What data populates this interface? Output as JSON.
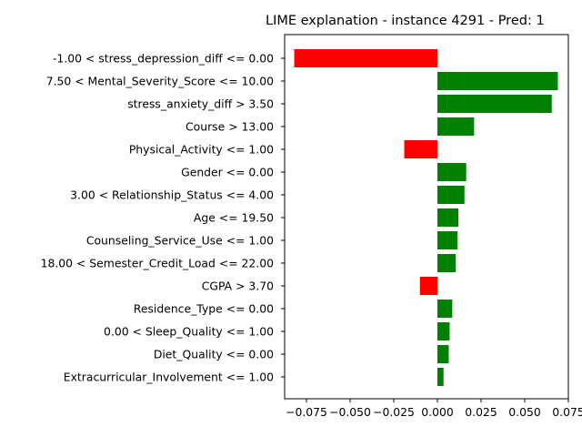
{
  "chart_data": {
    "type": "bar",
    "orientation": "horizontal",
    "title": "LIME explanation - instance 4291 - Pred: 1",
    "xlabel": "",
    "ylabel": "",
    "xlim": [
      -0.0875,
      0.075
    ],
    "xticks": [
      -0.075,
      -0.05,
      -0.025,
      0.0,
      0.025,
      0.05,
      0.075
    ],
    "xtick_labels": [
      "−0.075",
      "−0.050",
      "−0.025",
      "0.000",
      "0.025",
      "0.050",
      "0.075"
    ],
    "grid": false,
    "legend": "none",
    "colors": {
      "positive": "#008000",
      "negative": "#ff0000"
    },
    "categories": [
      "-1.00 < stress_depression_diff <= 0.00",
      "7.50 < Mental_Severity_Score <= 10.00",
      "stress_anxiety_diff > 3.50",
      "Course > 13.00",
      "Physical_Activity <= 1.00",
      "Gender <= 0.00",
      "3.00 < Relationship_Status <= 4.00",
      "Age <= 19.50",
      "Counseling_Service_Use <= 1.00",
      "18.00 < Semester_Credit_Load <= 22.00",
      "CGPA > 3.70",
      "Residence_Type <= 0.00",
      "0.00 < Sleep_Quality <= 1.00",
      "Diet_Quality <= 0.00",
      "Extracurricular_Involvement <= 1.00"
    ],
    "values": [
      -0.082,
      0.069,
      0.0655,
      0.021,
      -0.019,
      0.0165,
      0.0155,
      0.012,
      0.0115,
      0.0105,
      -0.01,
      0.0085,
      0.007,
      0.0065,
      0.0035
    ]
  }
}
